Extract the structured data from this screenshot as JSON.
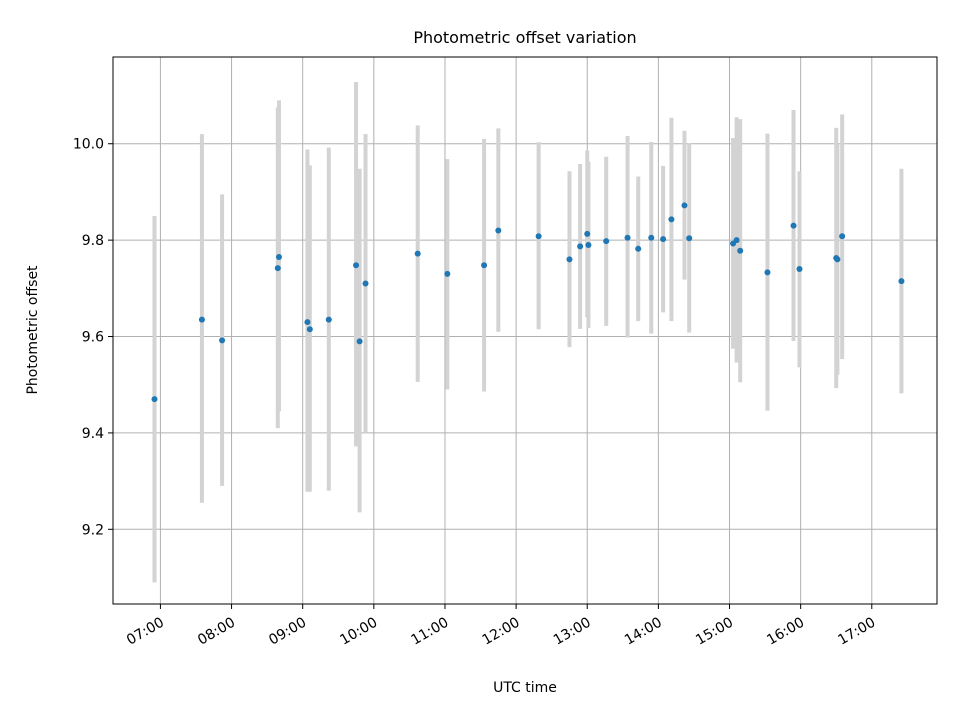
{
  "chart_data": {
    "type": "scatter",
    "title": "Photometric offset variation",
    "xlabel": "UTC time",
    "ylabel": "Photometric offset",
    "x_unit": "UTC hour",
    "xlim": [
      "06:20",
      "17:55"
    ],
    "ylim": [
      9.045,
      10.18
    ],
    "x_ticks": [
      "07:00",
      "08:00",
      "09:00",
      "10:00",
      "11:00",
      "12:00",
      "13:00",
      "14:00",
      "15:00",
      "16:00",
      "17:00"
    ],
    "y_ticks": [
      "9.2",
      "9.4",
      "9.6",
      "9.8",
      "10.0"
    ],
    "grid": true,
    "point_color": "#1f77b4",
    "errorbar_color": "#d3d3d3",
    "points": [
      {
        "x": "06:55",
        "y": 9.47,
        "low": 9.09,
        "high": 9.85
      },
      {
        "x": "07:35",
        "y": 9.635,
        "low": 9.255,
        "high": 10.02
      },
      {
        "x": "07:52",
        "y": 9.592,
        "low": 9.29,
        "high": 9.895
      },
      {
        "x": "08:39",
        "y": 9.742,
        "low": 9.41,
        "high": 10.075
      },
      {
        "x": "08:40",
        "y": 9.765,
        "low": 9.445,
        "high": 10.09
      },
      {
        "x": "09:04",
        "y": 9.63,
        "low": 9.278,
        "high": 9.988
      },
      {
        "x": "09:06",
        "y": 9.615,
        "low": 9.278,
        "high": 9.955
      },
      {
        "x": "09:22",
        "y": 9.635,
        "low": 9.28,
        "high": 9.992
      },
      {
        "x": "09:45",
        "y": 9.748,
        "low": 9.372,
        "high": 10.128
      },
      {
        "x": "09:48",
        "y": 9.59,
        "low": 9.235,
        "high": 9.948
      },
      {
        "x": "09:53",
        "y": 9.71,
        "low": 9.4,
        "high": 10.02
      },
      {
        "x": "10:37",
        "y": 9.772,
        "low": 9.506,
        "high": 10.038
      },
      {
        "x": "11:02",
        "y": 9.73,
        "low": 9.49,
        "high": 9.968
      },
      {
        "x": "11:33",
        "y": 9.748,
        "low": 9.486,
        "high": 10.01
      },
      {
        "x": "11:45",
        "y": 9.82,
        "low": 9.61,
        "high": 10.032
      },
      {
        "x": "12:19",
        "y": 9.808,
        "low": 9.615,
        "high": 10.003
      },
      {
        "x": "12:45",
        "y": 9.76,
        "low": 9.578,
        "high": 9.943
      },
      {
        "x": "12:54",
        "y": 9.787,
        "low": 9.616,
        "high": 9.958
      },
      {
        "x": "13:00",
        "y": 9.813,
        "low": 9.64,
        "high": 9.986
      },
      {
        "x": "13:01",
        "y": 9.79,
        "low": 9.618,
        "high": 9.963
      },
      {
        "x": "13:16",
        "y": 9.798,
        "low": 9.622,
        "high": 9.973
      },
      {
        "x": "13:34",
        "y": 9.805,
        "low": 9.598,
        "high": 10.016
      },
      {
        "x": "13:43",
        "y": 9.782,
        "low": 9.632,
        "high": 9.932
      },
      {
        "x": "13:54",
        "y": 9.805,
        "low": 9.606,
        "high": 10.004
      },
      {
        "x": "14:04",
        "y": 9.802,
        "low": 9.65,
        "high": 9.954
      },
      {
        "x": "14:11",
        "y": 9.843,
        "low": 9.632,
        "high": 10.054
      },
      {
        "x": "14:22",
        "y": 9.872,
        "low": 9.718,
        "high": 10.027
      },
      {
        "x": "14:26",
        "y": 9.804,
        "low": 9.608,
        "high": 10.001
      },
      {
        "x": "15:03",
        "y": 9.793,
        "low": 9.575,
        "high": 10.012
      },
      {
        "x": "15:06",
        "y": 9.8,
        "low": 9.546,
        "high": 10.055
      },
      {
        "x": "15:09",
        "y": 9.778,
        "low": 9.505,
        "high": 10.051
      },
      {
        "x": "15:32",
        "y": 9.733,
        "low": 9.446,
        "high": 10.021
      },
      {
        "x": "15:54",
        "y": 9.83,
        "low": 9.591,
        "high": 10.07
      },
      {
        "x": "15:59",
        "y": 9.74,
        "low": 9.536,
        "high": 9.943
      },
      {
        "x": "16:30",
        "y": 9.763,
        "low": 9.493,
        "high": 10.033
      },
      {
        "x": "16:31",
        "y": 9.76,
        "low": 9.521,
        "high": 9.999
      },
      {
        "x": "16:35",
        "y": 9.808,
        "low": 9.553,
        "high": 10.061
      },
      {
        "x": "17:25",
        "y": 9.715,
        "low": 9.482,
        "high": 9.948
      }
    ]
  }
}
